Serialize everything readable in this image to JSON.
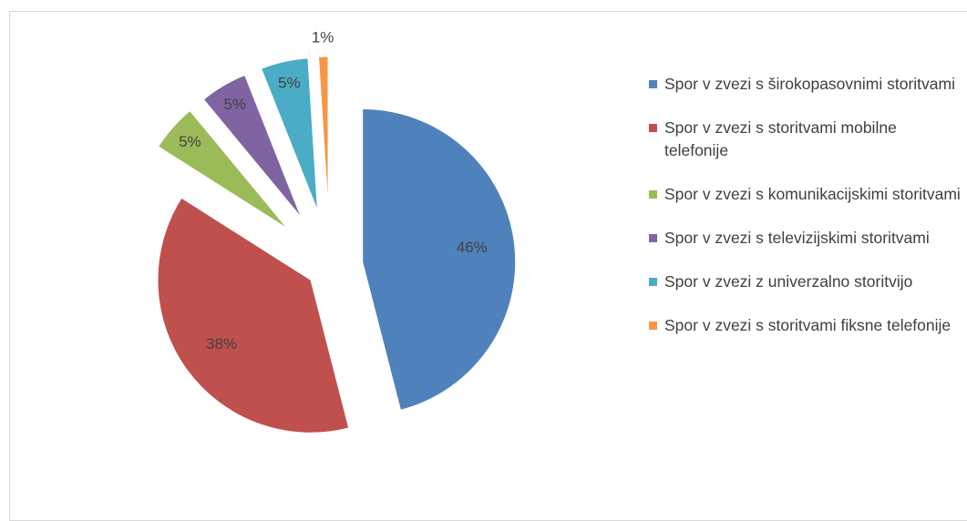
{
  "chart_data": {
    "type": "pie",
    "categories": [
      "Spor v zvezi s širokopasovnimi storitvami",
      "Spor v zvezi s storitvami mobilne telefonije",
      "Spor v zvezi s komunikacijskimi storitvami",
      "Spor v zvezi s televizijskimi storitvami",
      "Spor v zvezi z univerzalno storitvijo",
      "Spor v zvezi s storitvami fiksne telefonije"
    ],
    "values": [
      46,
      38,
      5,
      5,
      5,
      1
    ],
    "value_labels": [
      "46%",
      "38%",
      "5%",
      "5%",
      "5%",
      "1%"
    ],
    "colors": [
      "#4f81bd",
      "#c0504d",
      "#9bbb59",
      "#8064a2",
      "#4bacc6",
      "#f79646"
    ],
    "legend": "right"
  }
}
